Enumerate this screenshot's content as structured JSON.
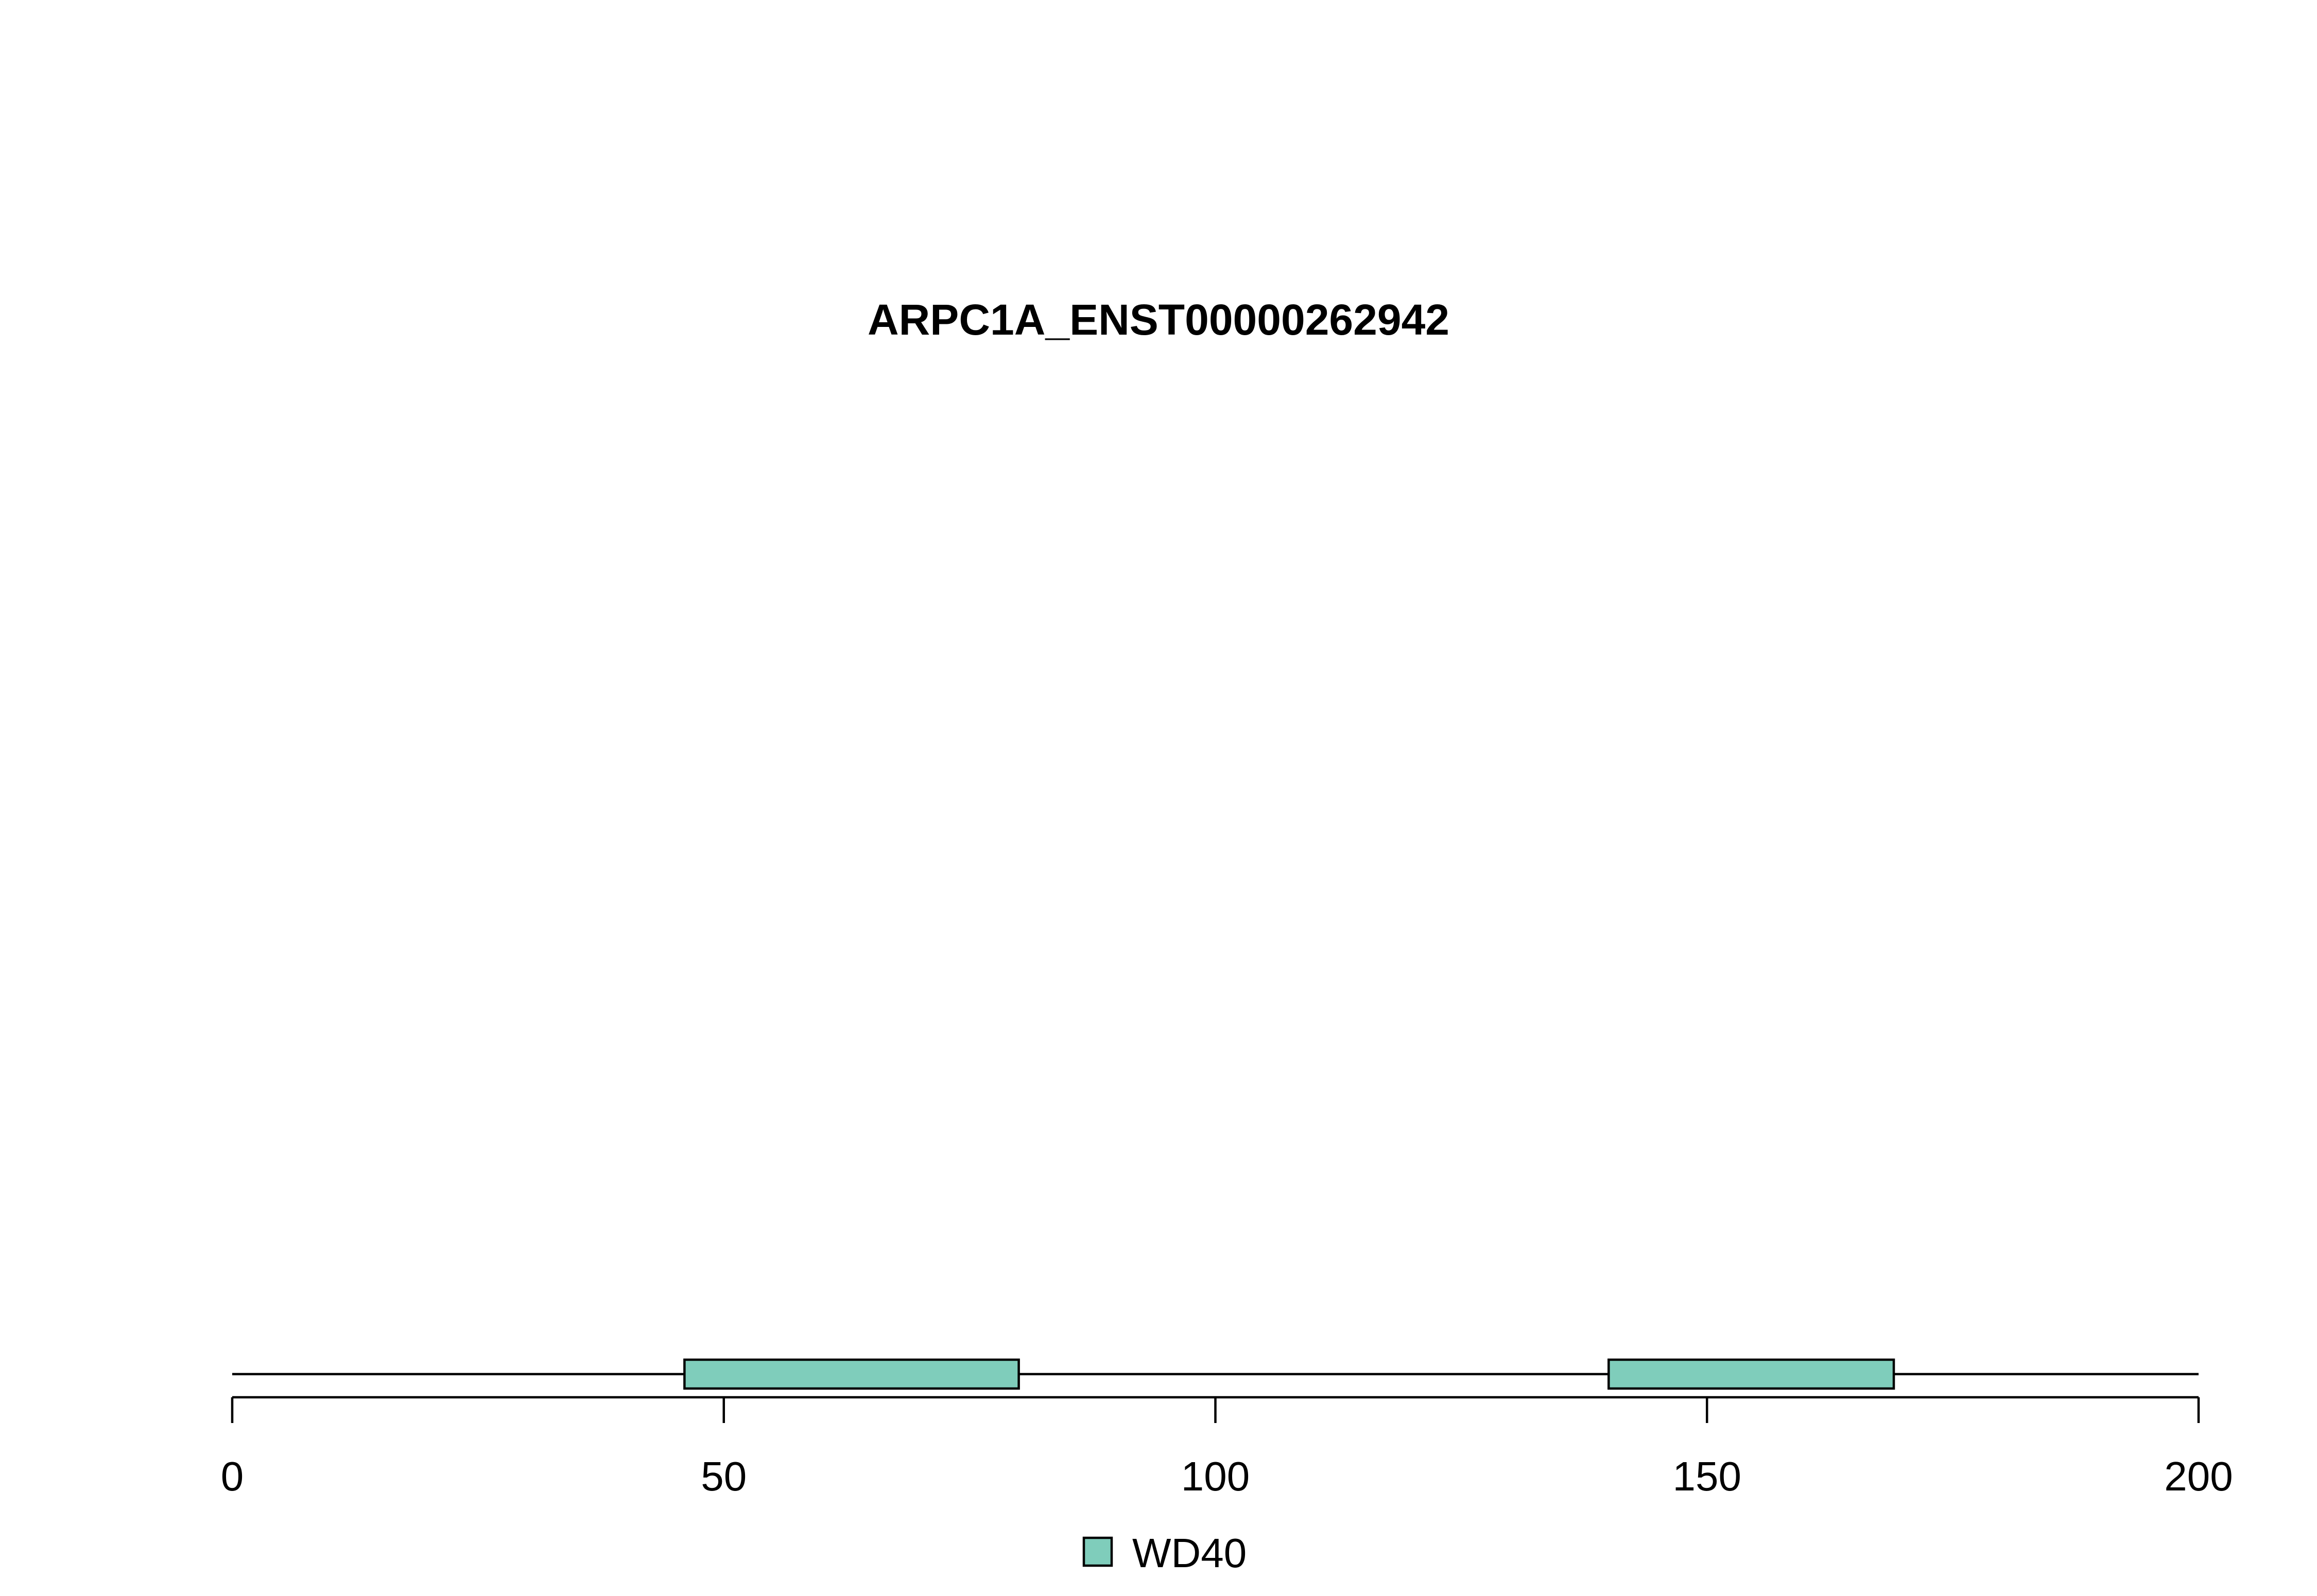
{
  "chart_data": {
    "type": "bar",
    "title": "ARPC1A_ENST00000262942",
    "xlabel": "",
    "ylabel": "",
    "xlim": [
      0,
      200
    ],
    "protein_length": 200,
    "x_ticks": [
      0,
      50,
      100,
      150,
      200
    ],
    "domains": [
      {
        "name": "WD40",
        "start": 46,
        "end": 80
      },
      {
        "name": "WD40",
        "start": 140,
        "end": 169
      }
    ],
    "legend": [
      {
        "name": "WD40",
        "color": "#7FCDBB"
      }
    ],
    "legend_position": "bottom-center",
    "grid": false
  },
  "colors": {
    "domain_fill": "#7FCDBB",
    "stroke": "#000000",
    "background": "#FFFFFF"
  }
}
